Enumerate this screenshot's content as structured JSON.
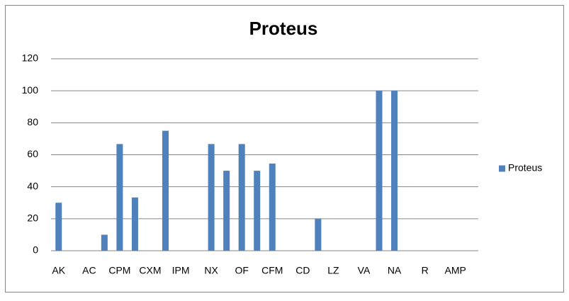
{
  "chart_data": {
    "type": "bar",
    "title": "Proteus",
    "categories": [
      "AK",
      null,
      "AC",
      null,
      "CPM",
      null,
      "CXM",
      null,
      "IPM",
      null,
      "NX",
      null,
      "OF",
      null,
      "CFM",
      null,
      "CD",
      null,
      "LZ",
      null,
      "VA",
      null,
      "NA",
      null,
      "R",
      null,
      "AMP",
      null
    ],
    "series": [
      {
        "name": "Proteus",
        "color": "#4f81bd",
        "values": [
          30,
          0,
          0,
          10,
          66.7,
          33.3,
          0,
          75,
          0,
          0,
          66.7,
          50,
          66.7,
          50,
          54.5,
          0,
          0,
          20,
          0,
          0,
          0,
          100,
          100,
          0,
          0,
          0,
          0,
          0
        ]
      }
    ],
    "ylim": [
      0,
      120
    ],
    "yticks": [
      0,
      20,
      40,
      60,
      80,
      100,
      120
    ],
    "grid": true,
    "legend": "right"
  }
}
